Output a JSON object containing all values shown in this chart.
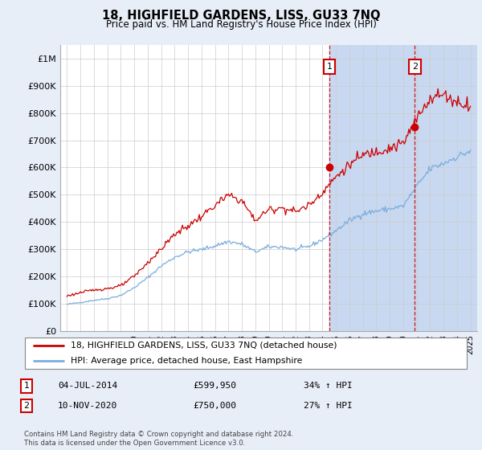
{
  "title": "18, HIGHFIELD GARDENS, LISS, GU33 7NQ",
  "subtitle": "Price paid vs. HM Land Registry's House Price Index (HPI)",
  "ylabel_ticks": [
    "£0",
    "£100K",
    "£200K",
    "£300K",
    "£400K",
    "£500K",
    "£600K",
    "£700K",
    "£800K",
    "£900K",
    "£1M"
  ],
  "ytick_values": [
    0,
    100000,
    200000,
    300000,
    400000,
    500000,
    600000,
    700000,
    800000,
    900000,
    1000000
  ],
  "ylim": [
    0,
    1050000
  ],
  "sale1_year": 2014.503,
  "sale1_price": 599950,
  "sale2_year": 2020.868,
  "sale2_price": 750000,
  "legend_line1": "18, HIGHFIELD GARDENS, LISS, GU33 7NQ (detached house)",
  "legend_line2": "HPI: Average price, detached house, East Hampshire",
  "annot1_date": "04-JUL-2014",
  "annot1_price": "£599,950",
  "annot1_pct": "34% ↑ HPI",
  "annot2_date": "10-NOV-2020",
  "annot2_price": "£750,000",
  "annot2_pct": "27% ↑ HPI",
  "footnote": "Contains HM Land Registry data © Crown copyright and database right 2024.\nThis data is licensed under the Open Government Licence v3.0.",
  "hpi_color": "#7aaddc",
  "price_color": "#cc0000",
  "vline_color": "#cc0000",
  "background_color": "#e8eef8",
  "plot_bg_color": "#ffffff",
  "grid_color": "#cccccc",
  "span_color": "#c8d8f0"
}
